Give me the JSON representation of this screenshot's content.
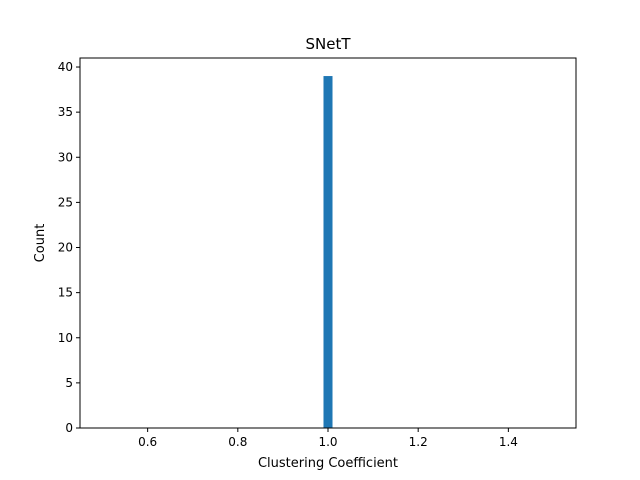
{
  "chart_data": {
    "type": "bar",
    "title": "SNetT",
    "xlabel": "Clustering Coefficient",
    "ylabel": "Count",
    "xlim": [
      0.45,
      1.55
    ],
    "ylim": [
      0,
      41
    ],
    "xticks": [
      0.6,
      0.8,
      1.0,
      1.2,
      1.4
    ],
    "xtick_labels": [
      "0.6",
      "0.8",
      "1.0",
      "1.2",
      "1.4"
    ],
    "yticks": [
      0,
      5,
      10,
      15,
      20,
      25,
      30,
      35,
      40
    ],
    "ytick_labels": [
      "0",
      "5",
      "10",
      "15",
      "20",
      "25",
      "30",
      "35",
      "40"
    ],
    "bins": [
      {
        "x_start": 0.99,
        "x_end": 1.01,
        "value": 39
      }
    ],
    "bar_color": "#1f77b4",
    "grid": false,
    "legend": "none"
  }
}
